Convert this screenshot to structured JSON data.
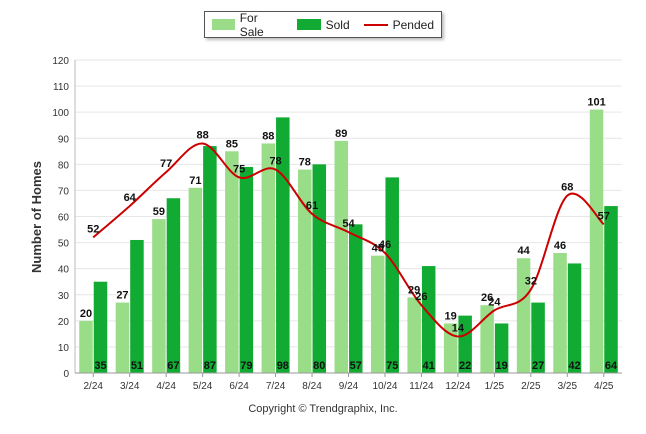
{
  "chart_data": {
    "type": "bar",
    "categories": [
      "2/24",
      "3/24",
      "4/24",
      "5/24",
      "6/24",
      "7/24",
      "8/24",
      "9/24",
      "10/24",
      "11/24",
      "12/24",
      "1/25",
      "2/25",
      "3/25",
      "4/25"
    ],
    "series": [
      {
        "name": "For Sale",
        "type": "bar",
        "color": "#99dd88",
        "values": [
          20,
          27,
          59,
          71,
          85,
          88,
          78,
          89,
          45,
          29,
          19,
          26,
          44,
          46,
          101
        ]
      },
      {
        "name": "Sold",
        "type": "bar",
        "color": "#11aa33",
        "values": [
          35,
          51,
          67,
          87,
          79,
          98,
          80,
          57,
          75,
          41,
          22,
          19,
          27,
          42,
          64
        ]
      },
      {
        "name": "Pended",
        "type": "line",
        "color": "#cc0000",
        "values": [
          52,
          64,
          77,
          88,
          75,
          78,
          61,
          54,
          46,
          26,
          14,
          24,
          32,
          68,
          57
        ]
      }
    ],
    "ylabel": "Number of Homes",
    "xlabel": "",
    "ylim": [
      0,
      120
    ],
    "yticks": [
      0,
      10,
      20,
      30,
      40,
      50,
      60,
      70,
      80,
      90,
      100,
      110,
      120
    ],
    "grid": true,
    "legend_position": "top-center"
  },
  "legend": {
    "for_sale": "For Sale",
    "sold": "Sold",
    "pended": "Pended"
  },
  "footer": {
    "copyright": "Copyright © Trendgraphix, Inc."
  }
}
